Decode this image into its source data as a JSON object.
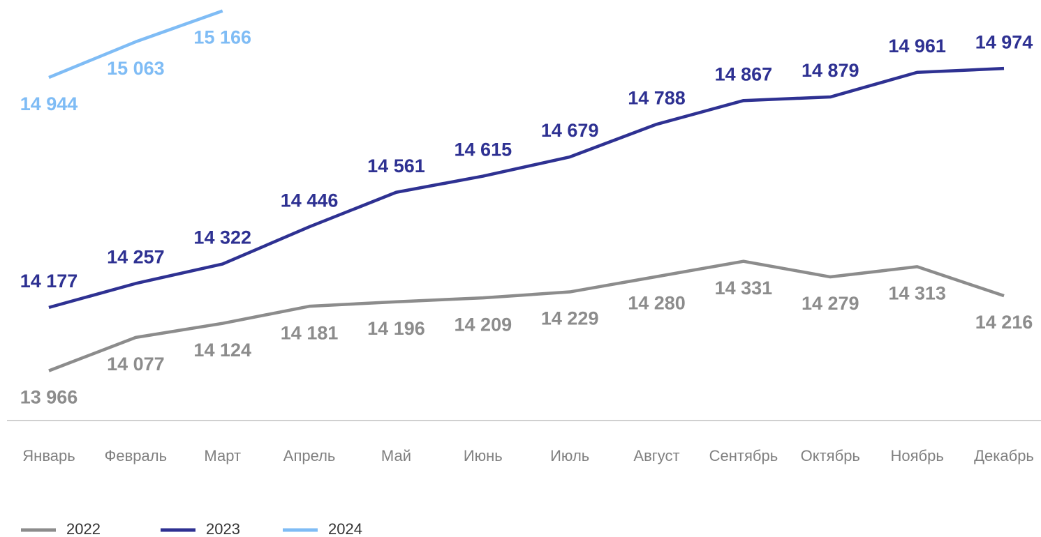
{
  "chart_data": {
    "type": "line",
    "categories": [
      "Январь",
      "Февраль",
      "Март",
      "Апрель",
      "Май",
      "Июнь",
      "Июль",
      "Август",
      "Сентябрь",
      "Октябрь",
      "Ноябрь",
      "Декабрь"
    ],
    "series": [
      {
        "name": "2022",
        "color": "#8c8c8c",
        "values": [
          13966,
          14077,
          14124,
          14181,
          14196,
          14209,
          14229,
          14280,
          14331,
          14279,
          14313,
          14216
        ],
        "value_labels": [
          "13 966",
          "14 077",
          "14 124",
          "14 181",
          "14 196",
          "14 209",
          "14 229",
          "14 280",
          "14 331",
          "14 279",
          "14 313",
          "14 216"
        ]
      },
      {
        "name": "2023",
        "color": "#2e3192",
        "values": [
          14177,
          14257,
          14322,
          14446,
          14561,
          14615,
          14679,
          14788,
          14867,
          14879,
          14961,
          14974
        ],
        "value_labels": [
          "14 177",
          "14 257",
          "14 322",
          "14 446",
          "14 561",
          "14 615",
          "14 679",
          "14 788",
          "14 867",
          "14 879",
          "14 961",
          "14 974"
        ]
      },
      {
        "name": "2024",
        "color": "#7fbcf5",
        "values": [
          14944,
          15063,
          15166,
          null,
          null,
          null,
          null,
          null,
          null,
          null,
          null,
          null
        ],
        "value_labels": [
          "14 944",
          "15 063",
          "15 166",
          null,
          null,
          null,
          null,
          null,
          null,
          null,
          null,
          null
        ]
      }
    ],
    "ylim": [
      13800,
      15200
    ],
    "legend": "bottom-left"
  }
}
